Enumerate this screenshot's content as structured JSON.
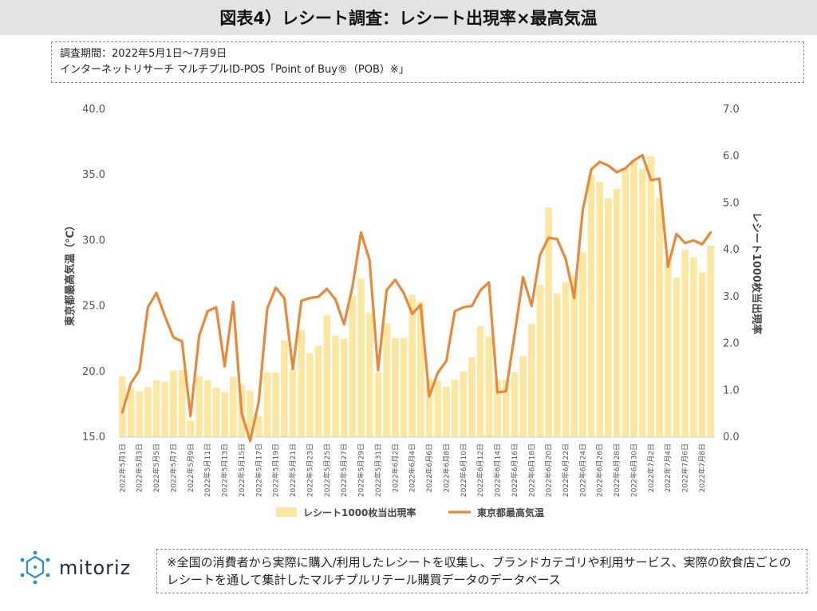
{
  "header": {
    "title": "図表4）レシート調査：レシート出現率×最高気温"
  },
  "period": {
    "line1": "調査期間：2022年5月1日〜7月9日",
    "line2": "インターネットリサーチ マルチプルID-POS「Point of Buy®（POB）※」"
  },
  "footer": {
    "logo_text": "mitoriz",
    "note": "※全国の消費者から実際に購入/利用したレシートを収集し、ブランドカテゴリや利用サービス、実際の飲食店ごとのレシートを通して集計したマルチプルリテール購買データのデータベース"
  },
  "colors": {
    "bar": "#fbe6a2",
    "line": "#e8883a",
    "axis_text": "#555555"
  },
  "chart_data": {
    "type": "bar+line",
    "x": [
      "2022年5月1日",
      "2022年5月2日",
      "2022年5月3日",
      "2022年5月4日",
      "2022年5月5日",
      "2022年5月6日",
      "2022年5月7日",
      "2022年5月8日",
      "2022年5月9日",
      "2022年5月10日",
      "2022年5月11日",
      "2022年5月12日",
      "2022年5月13日",
      "2022年5月14日",
      "2022年5月15日",
      "2022年5月16日",
      "2022年5月17日",
      "2022年5月18日",
      "2022年5月19日",
      "2022年5月20日",
      "2022年5月21日",
      "2022年5月22日",
      "2022年5月23日",
      "2022年5月24日",
      "2022年5月25日",
      "2022年5月26日",
      "2022年5月27日",
      "2022年5月28日",
      "2022年5月29日",
      "2022年5月30日",
      "2022年5月31日",
      "2022年6月1日",
      "2022年6月2日",
      "2022年6月3日",
      "2022年6月4日",
      "2022年6月5日",
      "2022年6月6日",
      "2022年6月7日",
      "2022年6月8日",
      "2022年6月9日",
      "2022年6月10日",
      "2022年6月11日",
      "2022年6月12日",
      "2022年6月13日",
      "2022年6月14日",
      "2022年6月15日",
      "2022年6月16日",
      "2022年6月17日",
      "2022年6月18日",
      "2022年6月19日",
      "2022年6月20日",
      "2022年6月21日",
      "2022年6月22日",
      "2022年6月23日",
      "2022年6月24日",
      "2022年6月25日",
      "2022年6月26日",
      "2022年6月27日",
      "2022年6月28日",
      "2022年6月29日",
      "2022年6月30日",
      "2022年7月1日",
      "2022年7月2日",
      "2022年7月3日",
      "2022年7月4日",
      "2022年7月5日",
      "2022年7月6日",
      "2022年7月7日",
      "2022年7月8日",
      "2022年7月9日"
    ],
    "tick_labels": [
      "2022年5月1日",
      "2022年5月3日",
      "2022年5月5日",
      "2022年5月7日",
      "2022年5月9日",
      "2022年5月11日",
      "2022年5月13日",
      "2022年5月15日",
      "2022年5月17日",
      "2022年5月19日",
      "2022年5月21日",
      "2022年5月23日",
      "2022年5月25日",
      "2022年5月27日",
      "2022年5月29日",
      "2022年5月31日",
      "2022年6月2日",
      "2022年6月4日",
      "2022年6月6日",
      "2022年6月8日",
      "2022年6月10日",
      "2022年6月12日",
      "2022年6月14日",
      "2022年6月16日",
      "2022年6月18日",
      "2022年6月20日",
      "2022年6月22日",
      "2022年6月24日",
      "2022年6月26日",
      "2022年6月28日",
      "2022年6月30日",
      "2022年7月2日",
      "2022年7月4日",
      "2022年7月6日",
      "2022年7月8日"
    ],
    "series": [
      {
        "name": "レシート1000枚当出現率",
        "type": "bar",
        "axis": "right",
        "values": [
          1.3,
          1.05,
          0.98,
          1.07,
          1.22,
          1.18,
          1.42,
          1.43,
          0.35,
          1.3,
          1.21,
          1.06,
          0.96,
          1.29,
          1.12,
          1.0,
          0.45,
          1.38,
          1.38,
          2.07,
          1.47,
          2.29,
          1.79,
          1.95,
          2.6,
          2.17,
          2.1,
          3.02,
          3.38,
          2.65,
          1.38,
          2.43,
          2.12,
          2.12,
          3.04,
          2.88,
          1.25,
          1.2,
          1.08,
          1.23,
          1.4,
          1.7,
          2.37,
          2.15,
          1.23,
          1.23,
          1.38,
          1.73,
          2.42,
          3.25,
          4.9,
          3.06,
          3.3,
          3.45,
          3.94,
          5.58,
          5.45,
          5.1,
          5.3,
          5.73,
          5.9,
          5.73,
          6.0,
          5.1,
          3.73,
          3.4,
          4.0,
          3.84,
          3.52,
          4.09
        ]
      },
      {
        "name": "東京都最高気温",
        "type": "line",
        "axis": "left",
        "values": [
          16.9,
          19.1,
          20.1,
          24.9,
          26.0,
          24.2,
          22.6,
          22.3,
          16.6,
          22.7,
          24.6,
          24.9,
          20.4,
          25.3,
          16.8,
          14.7,
          17.7,
          24.8,
          26.4,
          25.6,
          20.2,
          25.4,
          25.6,
          25.7,
          26.3,
          25.5,
          23.6,
          26.5,
          30.6,
          28.5,
          20.1,
          26.2,
          27.0,
          26.0,
          24.4,
          25.1,
          18.1,
          19.9,
          20.8,
          24.6,
          24.9,
          25.0,
          26.2,
          26.8,
          18.4,
          18.5,
          22.8,
          27.2,
          25.0,
          28.9,
          30.2,
          30.1,
          28.6,
          25.6,
          32.3,
          35.4,
          36.0,
          35.7,
          35.2,
          35.5,
          36.1,
          36.5,
          34.6,
          34.7,
          28.0,
          30.5,
          29.8,
          30.0,
          29.7,
          30.6
        ]
      }
    ],
    "y_left": {
      "label": "東京都最高気温（℃）",
      "ylim": [
        15.0,
        40.0
      ],
      "ticks": [
        "15.0",
        "20.0",
        "25.0",
        "30.0",
        "35.0",
        "40.0"
      ]
    },
    "y_right": {
      "label": "レシート1000枚当出現率",
      "ylim": [
        0.0,
        7.0
      ],
      "ticks": [
        "0.0",
        "1.0",
        "2.0",
        "3.0",
        "4.0",
        "5.0",
        "6.0",
        "7.0"
      ]
    },
    "legend": {
      "placement": "bottom-center",
      "bar_label": "レシート1000枚当出現率",
      "line_label": "東京都最高気温"
    },
    "grid": false
  }
}
